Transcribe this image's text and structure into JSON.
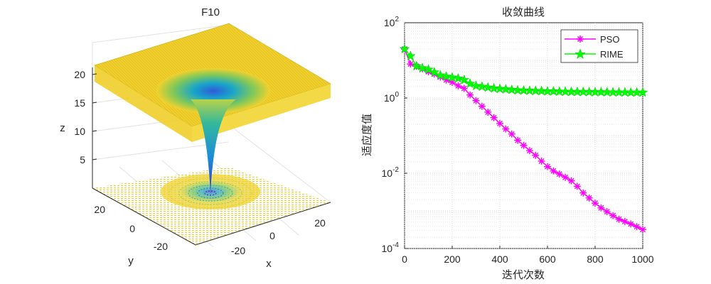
{
  "chart_data": [
    {
      "type": "surface",
      "title": "F10",
      "xlabel": "x",
      "ylabel": "y",
      "zlabel": "z",
      "x_ticks": [
        "-20",
        "0",
        "20"
      ],
      "y_ticks": [
        "-20",
        "0",
        "20"
      ],
      "z_ticks": [
        "5",
        "10",
        "15",
        "20"
      ],
      "xlim": [
        -32,
        32
      ],
      "ylim": [
        -32,
        32
      ],
      "zlim": [
        0,
        22
      ],
      "surface_plateau_z": 22,
      "surface_min_z": 0,
      "contour_projection_on_floor": true,
      "grid": true,
      "colormap": "parula",
      "colors": {
        "plateau": "#f2d22e",
        "mid": "#2fb7a0",
        "low": "#3b4bd0"
      }
    },
    {
      "type": "line",
      "title": "收敛曲线",
      "xlabel": "迭代次数",
      "ylabel": "适应度值",
      "x_ticks": [
        "0",
        "200",
        "400",
        "600",
        "800",
        "1000"
      ],
      "y_ticks": [
        {
          "base": "10",
          "exp": "2"
        },
        {
          "base": "10",
          "exp": "0"
        },
        {
          "base": "10",
          "exp": "-2"
        },
        {
          "base": "10",
          "exp": "-4"
        }
      ],
      "xlim": [
        0,
        1000
      ],
      "ylim": [
        0.0001,
        100
      ],
      "y_scale": "log",
      "grid": "dotted",
      "legend_position": "top-right",
      "series": [
        {
          "name": "PSO",
          "color": "#ff00ff",
          "marker": "asterisk",
          "x": [
            0,
            25,
            50,
            75,
            100,
            125,
            150,
            175,
            200,
            225,
            250,
            275,
            300,
            325,
            350,
            375,
            400,
            425,
            450,
            475,
            500,
            525,
            550,
            575,
            600,
            625,
            650,
            675,
            700,
            725,
            750,
            775,
            800,
            825,
            850,
            875,
            900,
            925,
            950,
            975,
            1000
          ],
          "y": [
            20,
            8,
            7,
            6,
            5,
            4.3,
            3.6,
            3.0,
            2.6,
            2.1,
            1.8,
            1.2,
            0.85,
            0.6,
            0.42,
            0.3,
            0.21,
            0.15,
            0.11,
            0.075,
            0.055,
            0.04,
            0.03,
            0.021,
            0.015,
            0.0115,
            0.0095,
            0.0078,
            0.0063,
            0.0045,
            0.003,
            0.0022,
            0.0016,
            0.0012,
            0.00095,
            0.00075,
            0.0006,
            0.00052,
            0.00045,
            0.00038,
            0.00032
          ]
        },
        {
          "name": "RIME",
          "color": "#00ff00",
          "marker": "pentagram",
          "x": [
            0,
            25,
            50,
            75,
            100,
            125,
            150,
            175,
            200,
            225,
            250,
            275,
            300,
            325,
            350,
            375,
            400,
            425,
            450,
            475,
            500,
            525,
            550,
            575,
            600,
            625,
            650,
            675,
            700,
            725,
            750,
            775,
            800,
            825,
            850,
            875,
            900,
            925,
            950,
            975,
            1000
          ],
          "y": [
            20,
            13,
            7,
            6.2,
            5.7,
            4.8,
            4.0,
            3.7,
            3.5,
            3.3,
            3.0,
            2.4,
            2.1,
            2.0,
            1.9,
            1.8,
            1.75,
            1.7,
            1.65,
            1.6,
            1.58,
            1.56,
            1.55,
            1.53,
            1.5,
            1.5,
            1.48,
            1.47,
            1.46,
            1.45,
            1.45,
            1.44,
            1.43,
            1.43,
            1.42,
            1.42,
            1.41,
            1.41,
            1.4,
            1.4,
            1.4
          ]
        }
      ]
    }
  ]
}
